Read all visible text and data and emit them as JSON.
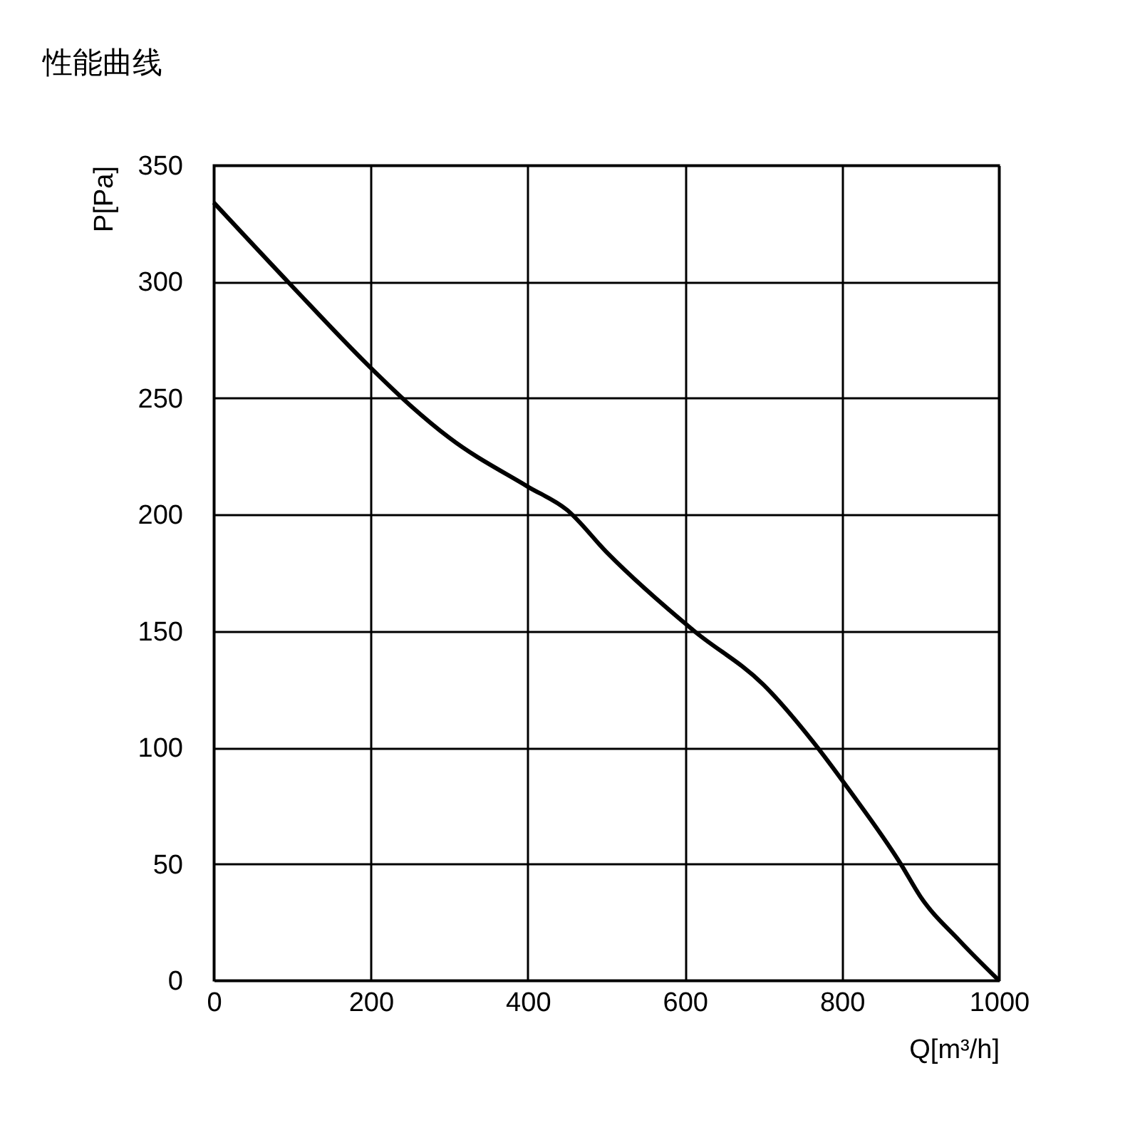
{
  "chart_data": {
    "type": "line",
    "title": "性能曲线",
    "xlabel": "Q[m³/h]",
    "ylabel": "P[Pa]",
    "x": [
      0,
      100,
      200,
      250,
      300,
      400,
      450,
      500,
      612,
      700,
      762,
      811,
      875,
      900,
      950,
      1000
    ],
    "series": [
      {
        "color": "#000000",
        "values": [
          334,
          298,
          263,
          247,
          233,
          212,
          202,
          184,
          150,
          127,
          103,
          81,
          50,
          36,
          17,
          0
        ]
      }
    ],
    "xlim": [
      0,
      1000
    ],
    "xticks": [
      0,
      200,
      400,
      600,
      800,
      1000
    ],
    "ylim": [
      0,
      350
    ],
    "yticks": [
      0,
      50,
      100,
      150,
      200,
      250,
      300,
      350
    ],
    "grid": true,
    "marker": "none",
    "line_style": "solid"
  }
}
